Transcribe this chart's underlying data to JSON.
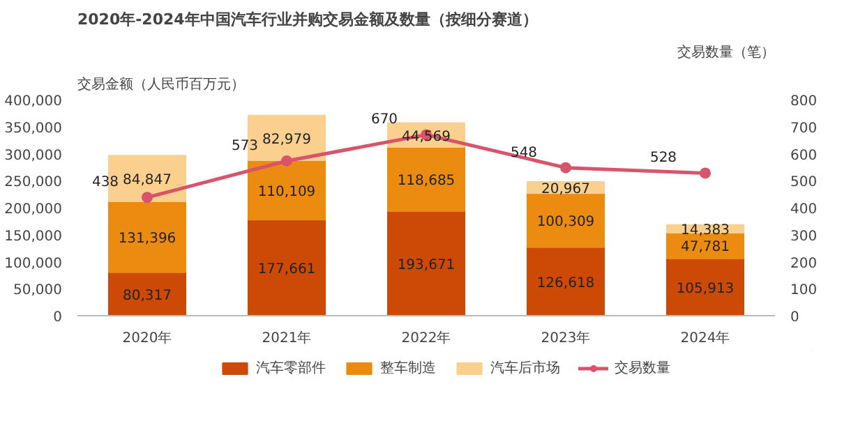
{
  "chart_data": {
    "type": "bar",
    "title": "2020年-2024年中国汽车行业并购交易金额及数量（按细分赛道）",
    "ylabel": "交易金额（人民币百万元）",
    "y2label": "交易数量（笔）",
    "categories": [
      "2020年",
      "2021年",
      "2022年",
      "2023年",
      "2024年"
    ],
    "stacked": true,
    "data_labels": true,
    "grid": false,
    "legend": "bottom",
    "marker": "circle",
    "ylim": [
      0,
      400000
    ],
    "yticks": [
      {
        "value": 0,
        "label": "0"
      },
      {
        "value": 50000,
        "label": "50,000"
      },
      {
        "value": 100000,
        "label": "100,000"
      },
      {
        "value": 150000,
        "label": "150,000"
      },
      {
        "value": 200000,
        "label": "200,000"
      },
      {
        "value": 250000,
        "label": "250,000"
      },
      {
        "value": 300000,
        "label": "300,000"
      },
      {
        "value": 350000,
        "label": "350,000"
      },
      {
        "value": 400000,
        "label": "400,000"
      }
    ],
    "y2lim": [
      0,
      800
    ],
    "y2ticks": [
      0,
      100,
      200,
      300,
      400,
      500,
      600,
      700,
      800
    ],
    "series": [
      {
        "name": "汽车零部件",
        "color": "#cc4a06",
        "values": [
          80317,
          177661,
          193671,
          126618,
          105913
        ],
        "value_labels": [
          "80,317",
          "177,661",
          "193,671",
          "126,618",
          "105,913"
        ]
      },
      {
        "name": "整车制造",
        "color": "#eb8c10",
        "values": [
          131396,
          110109,
          118685,
          100309,
          47781
        ],
        "value_labels": [
          "131,396",
          "110,109",
          "118,685",
          "100,309",
          "47,781"
        ]
      },
      {
        "name": "汽车后市场",
        "color": "#fbd08e",
        "values": [
          84847,
          82979,
          44569,
          20967,
          14383
        ],
        "value_labels": [
          "84,847",
          "82,979",
          "44,569",
          "20,967",
          "14,383"
        ]
      },
      {
        "name": "交易数量",
        "type": "line",
        "axis": "y2",
        "color": "#d9536a",
        "values": [
          438,
          573,
          670,
          548,
          528
        ]
      }
    ]
  }
}
